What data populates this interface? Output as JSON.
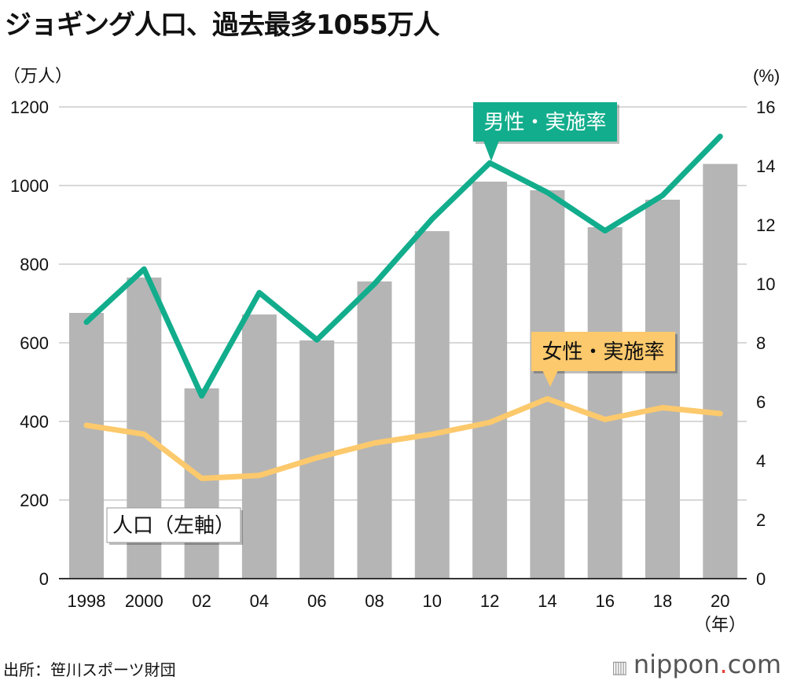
{
  "title": "ジョギング人口、過去最多1055万人",
  "source": "出所：笹川スポーツ財団",
  "logo": "nippon.com",
  "colors": {
    "bar": "#b5b5b5",
    "male": "#12ad8c",
    "female": "#fcc96c",
    "grid": "#cccccc"
  },
  "chart_data": {
    "type": "bar+line",
    "categories": [
      "1998",
      "2000",
      "02",
      "04",
      "06",
      "08",
      "10",
      "12",
      "14",
      "16",
      "18",
      "20"
    ],
    "x_unit_label": "（年）",
    "y_left": {
      "unit_label": "（万人）",
      "range": [
        0,
        1200
      ],
      "ticks": [
        0,
        200,
        400,
        600,
        800,
        1000,
        1200
      ]
    },
    "y_right": {
      "unit_label": "(%)",
      "range": [
        0,
        16
      ],
      "ticks": [
        0,
        2,
        4,
        6,
        8,
        10,
        12,
        14,
        16
      ]
    },
    "grid": true,
    "series": [
      {
        "name": "人口（左軸）",
        "type": "bar",
        "axis": "left",
        "values": [
          676,
          766,
          484,
          672,
          606,
          756,
          884,
          1010,
          988,
          894,
          964,
          1055
        ]
      },
      {
        "name": "男性・実施率",
        "type": "line",
        "axis": "right",
        "values": [
          8.7,
          10.5,
          6.2,
          9.7,
          8.1,
          10.0,
          12.2,
          14.1,
          13.1,
          11.8,
          13.0,
          15.0
        ]
      },
      {
        "name": "女性・実施率",
        "type": "line",
        "axis": "right",
        "values": [
          5.2,
          4.9,
          3.4,
          3.5,
          4.1,
          4.6,
          4.9,
          5.3,
          6.1,
          5.4,
          5.8,
          5.6
        ]
      }
    ]
  }
}
